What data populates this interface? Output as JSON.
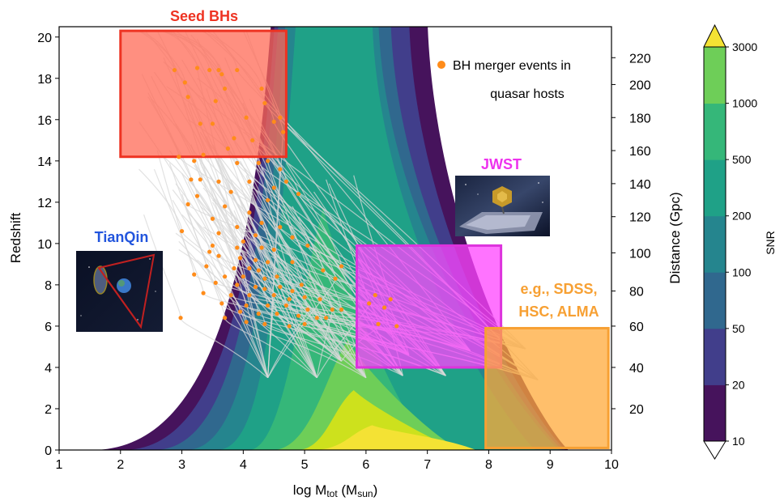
{
  "chart_data": {
    "type": "contour",
    "xlabel": "log M",
    "xlabel_sub": "tot",
    "xlabel_tail": " (M",
    "xlabel_sub2": "sun",
    "xlabel_end": ")",
    "ylabel": "Redshift",
    "y2label": "Distance (Gpc)",
    "xlim": [
      1,
      10
    ],
    "ylim": [
      0,
      20.5
    ],
    "xticks": [
      1,
      2,
      3,
      4,
      5,
      6,
      7,
      8,
      9,
      10
    ],
    "yticks": [
      0,
      2,
      4,
      6,
      8,
      10,
      12,
      14,
      16,
      18,
      20
    ],
    "y2ticks": [
      {
        "label": "20",
        "z": 2.0
      },
      {
        "label": "40",
        "z": 4.0
      },
      {
        "label": "60",
        "z": 6.0
      },
      {
        "label": "80",
        "z": 7.7
      },
      {
        "label": "100",
        "z": 9.55
      },
      {
        "label": "120",
        "z": 11.3
      },
      {
        "label": "140",
        "z": 12.9
      },
      {
        "label": "160",
        "z": 14.5
      },
      {
        "label": "180",
        "z": 16.1
      },
      {
        "label": "200",
        "z": 17.7
      },
      {
        "label": "220",
        "z": 19.0
      }
    ],
    "colorbar": {
      "label": "SNR",
      "levels": [
        "10",
        "20",
        "50",
        "100",
        "200",
        "500",
        "1000",
        "3000"
      ],
      "colors": [
        "#46135c",
        "#413e8b",
        "#30688e",
        "#25858e",
        "#1fa187",
        "#35b779",
        "#6ece58",
        "#cde11d"
      ],
      "over_color": "#f4e234",
      "under_color": "#ffffff"
    },
    "snr_contour_peaks": [
      {
        "level": "10",
        "z_max": 21,
        "x_peak": 6.8,
        "base_x": 1.6
      },
      {
        "level": "20",
        "z_max": 21,
        "x_peak": 6.5,
        "base_x": 2.1
      },
      {
        "level": "50",
        "z_max": 21,
        "x_peak": 6.2,
        "base_x": 2.6
      },
      {
        "level": "100",
        "z_max": 21,
        "x_peak": 6.0,
        "base_x": 3.1
      },
      {
        "level": "200",
        "z_max": 21,
        "x_peak": 5.9,
        "base_x": 3.6
      },
      {
        "level": "500",
        "z_max": 11.7,
        "x_peak": 5.3,
        "base_x": 4.1
      },
      {
        "level": "1000",
        "z_max": 5.3,
        "x_peak": 5.7,
        "base_x": 4.5
      },
      {
        "level": "3000",
        "z_max": 2.9,
        "x_peak": 5.8,
        "base_x": 4.9
      },
      {
        "level": "over",
        "z_max": 1.2,
        "x_peak": 6.1,
        "base_x": 5.2
      }
    ],
    "regions": [
      {
        "name": "Seed BHs",
        "x": [
          2.0,
          4.7
        ],
        "z": [
          14.2,
          20.3
        ],
        "fill": "#ff6a55",
        "stroke": "#ee3322",
        "label_color": "#ee3322"
      },
      {
        "name": "JWST",
        "x": [
          5.85,
          8.2
        ],
        "z": [
          4.0,
          9.9
        ],
        "fill": "#ff44ff",
        "stroke": "#dd33dd",
        "label_color": "#ee33ee"
      },
      {
        "name": "e.g., SDSS, HSC, ALMA",
        "x": [
          7.95,
          9.95
        ],
        "z": [
          0.1,
          5.9
        ],
        "fill": "#ffaa3a",
        "stroke": "#f7a033",
        "label_color": "#f7a033"
      }
    ],
    "labels": {
      "seed": "Seed BHs",
      "jwst": "JWST",
      "tianqin": "TianQin",
      "sdss_line1": "e.g., SDSS,",
      "sdss_line2": "HSC, ALMA",
      "legend_line1": "BH merger events in",
      "legend_line2": "quasar hosts"
    },
    "legend": {
      "marker_color": "#ff8c1a",
      "placement": "top-right"
    },
    "merger_events": [
      [
        2.88,
        18.4
      ],
      [
        3.1,
        17.1
      ],
      [
        3.45,
        18.4
      ],
      [
        3.6,
        18.4
      ],
      [
        3.65,
        18.2
      ],
      [
        3.9,
        18.4
      ],
      [
        3.55,
        16.9
      ],
      [
        3.7,
        17.5
      ],
      [
        4.3,
        17.5
      ],
      [
        4.35,
        16.8
      ],
      [
        4.65,
        15.4
      ],
      [
        3.3,
        15.8
      ],
      [
        3.5,
        15.8
      ],
      [
        4.05,
        16.1
      ],
      [
        4.5,
        15.9
      ],
      [
        4.6,
        16.1
      ],
      [
        3.2,
        14.0
      ],
      [
        3.35,
        14.3
      ],
      [
        3.9,
        13.9
      ],
      [
        4.25,
        13.9
      ],
      [
        4.6,
        13.6
      ],
      [
        3.15,
        13.1
      ],
      [
        3.3,
        13.1
      ],
      [
        3.6,
        13.0
      ],
      [
        4.1,
        13.0
      ],
      [
        4.7,
        13.0
      ],
      [
        3.8,
        12.5
      ],
      [
        4.4,
        12.1
      ],
      [
        4.9,
        12.4
      ],
      [
        3.1,
        11.9
      ],
      [
        3.7,
        11.8
      ],
      [
        4.1,
        11.5
      ],
      [
        3.5,
        11.2
      ],
      [
        4.3,
        11.0
      ],
      [
        3.9,
        10.8
      ],
      [
        4.6,
        10.8
      ],
      [
        3.0,
        10.6
      ],
      [
        3.6,
        10.5
      ],
      [
        4.2,
        10.4
      ],
      [
        4.8,
        10.3
      ],
      [
        3.5,
        9.9
      ],
      [
        3.9,
        9.8
      ],
      [
        4.3,
        9.8
      ],
      [
        4.5,
        9.7
      ],
      [
        5.05,
        9.9
      ],
      [
        3.6,
        9.4
      ],
      [
        3.95,
        9.3
      ],
      [
        4.2,
        9.2
      ],
      [
        4.4,
        9.1
      ],
      [
        4.8,
        9.1
      ],
      [
        3.4,
        8.9
      ],
      [
        3.85,
        8.8
      ],
      [
        4.1,
        8.8
      ],
      [
        4.25,
        8.7
      ],
      [
        5.3,
        8.7
      ],
      [
        3.2,
        8.5
      ],
      [
        3.7,
        8.4
      ],
      [
        4.0,
        8.4
      ],
      [
        4.35,
        8.3
      ],
      [
        4.55,
        8.4
      ],
      [
        5.5,
        8.3
      ],
      [
        3.55,
        8.1
      ],
      [
        3.9,
        8.0
      ],
      [
        4.2,
        7.9
      ],
      [
        4.35,
        7.8
      ],
      [
        4.6,
        7.9
      ],
      [
        4.8,
        7.7
      ],
      [
        3.35,
        7.6
      ],
      [
        3.8,
        7.5
      ],
      [
        4.1,
        7.5
      ],
      [
        4.5,
        7.5
      ],
      [
        4.75,
        7.3
      ],
      [
        5.0,
        7.4
      ],
      [
        5.25,
        7.3
      ],
      [
        6.15,
        7.5
      ],
      [
        6.4,
        7.3
      ],
      [
        3.65,
        7.1
      ],
      [
        4.05,
        7.0
      ],
      [
        4.4,
        7.0
      ],
      [
        4.7,
        7.0
      ],
      [
        5.05,
        6.8
      ],
      [
        5.45,
        6.8
      ],
      [
        5.6,
        6.8
      ],
      [
        6.3,
        6.9
      ],
      [
        3.95,
        6.7
      ],
      [
        4.25,
        6.6
      ],
      [
        4.55,
        6.6
      ],
      [
        4.9,
        6.5
      ],
      [
        5.35,
        6.4
      ],
      [
        5.2,
        6.4
      ],
      [
        2.98,
        6.4
      ],
      [
        3.7,
        6.4
      ],
      [
        4.05,
        6.2
      ],
      [
        4.35,
        6.1
      ],
      [
        4.75,
        6.0
      ],
      [
        5.0,
        6.1
      ],
      [
        6.2,
        6.1
      ],
      [
        6.5,
        6.0
      ],
      [
        5.6,
        8.9
      ],
      [
        4.95,
        8.0
      ],
      [
        3.45,
        9.6
      ],
      [
        4.0,
        10.1
      ],
      [
        3.25,
        12.3
      ],
      [
        4.5,
        12.7
      ],
      [
        3.75,
        14.6
      ],
      [
        2.95,
        14.2
      ],
      [
        4.4,
        14.0
      ],
      [
        3.85,
        15.1
      ],
      [
        4.15,
        15.0
      ],
      [
        3.05,
        17.8
      ],
      [
        3.25,
        18.5
      ],
      [
        6.05,
        7.1
      ]
    ],
    "track_endpoints": [
      [
        4.4,
        3.5
      ],
      [
        5.2,
        3.5
      ],
      [
        6.0,
        3.5
      ],
      [
        6.6,
        3.6
      ],
      [
        7.3,
        3.6
      ],
      [
        8.8,
        3.4
      ],
      [
        5.6,
        4.3
      ],
      [
        6.7,
        4.6
      ],
      [
        7.7,
        4.8
      ],
      [
        8.6,
        4.9
      ]
    ]
  }
}
